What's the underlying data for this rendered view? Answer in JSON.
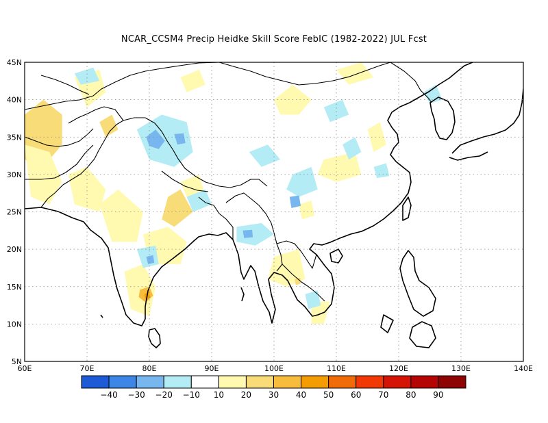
{
  "title": "NCAR_CCSM4 Precip Heidke Skill Score FebIC (1982-2022) JUL Fcst",
  "map": {
    "lon_range": [
      60,
      140
    ],
    "lat_range": [
      5,
      45
    ],
    "lon_ticks": [
      "60E",
      "70E",
      "80E",
      "90E",
      "100E",
      "110E",
      "120E",
      "130E",
      "140E"
    ],
    "lat_ticks": [
      "5N",
      "10N",
      "15N",
      "20N",
      "25N",
      "30N",
      "35N",
      "40N",
      "45N"
    ],
    "gridlines": "dotted"
  },
  "colorbar": {
    "colors": [
      "#1c5ad6",
      "#3d86e6",
      "#78b6f0",
      "#b4ecf5",
      "#ffffff",
      "#fffab0",
      "#f8dc78",
      "#f8bc3c",
      "#f49c04",
      "#f06c08",
      "#f23804",
      "#d41404",
      "#b40404",
      "#8e0404"
    ],
    "labels": [
      "-40",
      "-30",
      "-20",
      "-10",
      "10",
      "20",
      "30",
      "40",
      "50",
      "60",
      "70",
      "80",
      "90"
    ]
  },
  "field_colors": {
    "neg_light": "#b4ecf5",
    "neg_mid": "#78b6f0",
    "neg_strong": "#3d86e6",
    "pos_light": "#fffab0",
    "pos_mid": "#f8dc78",
    "pos_strong": "#f8bc3c",
    "pos_orange": "#f49c04"
  }
}
